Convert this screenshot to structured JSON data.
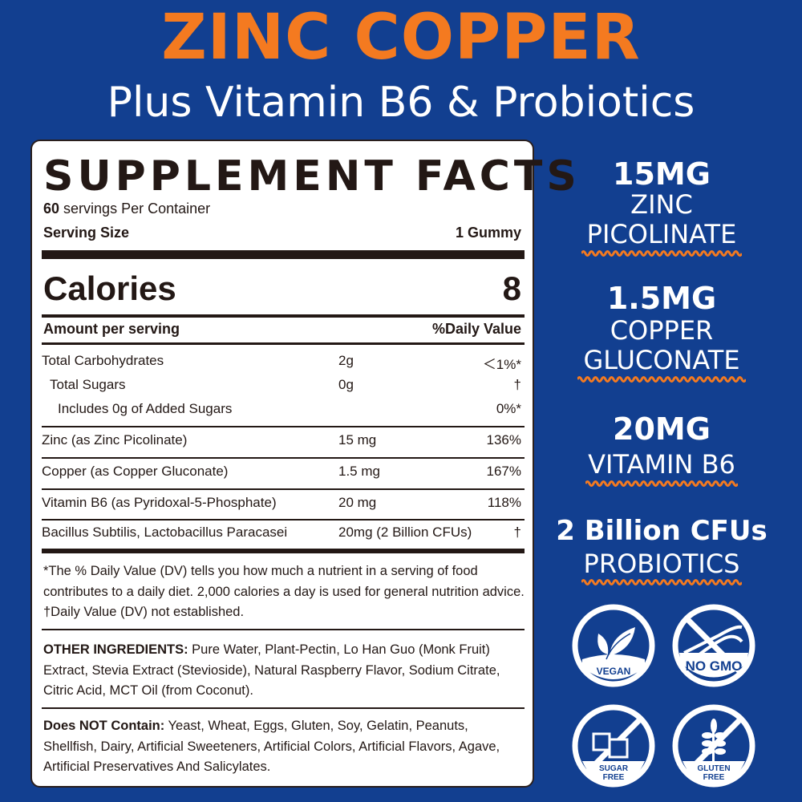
{
  "header": {
    "title": "ZINC COPPER",
    "subtitle": "Plus Vitamin B6 & Probiotics"
  },
  "facts": {
    "title": "SUPPLEMENT FACTS",
    "servings_count": "60",
    "servings_text": "servings Per Container",
    "serving_size_label": "Serving Size",
    "serving_size_value": "1 Gummy",
    "calories_label": "Calories",
    "calories_value": "8",
    "amount_label": "Amount per serving",
    "dv_label": "%Daily Value",
    "rows": [
      {
        "name": "Total Carbohydrates",
        "amount": "2g",
        "dv": "＜1%*"
      },
      {
        "name": "Total Sugars",
        "amount": "0g",
        "dv": "†"
      },
      {
        "name": "Includes 0g of Added Sugars",
        "amount": "",
        "dv": "0%*"
      },
      {
        "name": "Zinc (as Zinc Picolinate)",
        "amount": "15 mg",
        "dv": "136%"
      },
      {
        "name": "Copper (as Copper Gluconate)",
        "amount": "1.5 mg",
        "dv": "167%"
      },
      {
        "name": "Vitamin B6 (as Pyridoxal-5-Phosphate)",
        "amount": "20 mg",
        "dv": "118%"
      },
      {
        "name": "Bacillus Subtilis, Lactobacillus Paracasei",
        "amount": "20mg (2 Billion CFUs)",
        "dv": "†"
      }
    ],
    "footnote": "*The % Daily Value (DV) tells you how much a nutrient in a serving of food contributes to a daily diet. 2,000 calories a day is used for general nutrition advice. †Daily Value (DV) not established.",
    "other_label": "OTHER INGREDIENTS:",
    "other_text": " Pure Water, Plant-Pectin, Lo Han Guo (Monk Fruit) Extract, Stevia Extract (Stevioside), Natural Raspberry Flavor, Sodium Citrate, Citric Acid,  MCT Oil (from Coconut).",
    "not_label": "Does NOT Contain:",
    "not_text": " Yeast, Wheat, Eggs, Gluten, Soy, Gelatin, Peanuts, Shellfish, Dairy, Artificial Sweeteners, Artificial Colors, Artificial Flavors, Agave, Artificial Preservatives And Salicylates."
  },
  "highlights": [
    {
      "amount": "15MG",
      "line1": "ZINC",
      "line2": "PICOLINATE"
    },
    {
      "amount": "1.5MG",
      "line1": "COPPER",
      "line2": "GLUCONATE"
    },
    {
      "amount": "20MG",
      "line1": "VITAMIN B6"
    },
    {
      "amount": "2 Billion CFUs",
      "line1": "PROBIOTICS"
    }
  ],
  "badges": [
    {
      "icon": "leaf-icon",
      "label": "VEGAN"
    },
    {
      "icon": "dna-icon",
      "label": "NO GMO"
    },
    {
      "icon": "sugar-cubes-icon",
      "label1": "SUGAR",
      "label2": "FREE"
    },
    {
      "icon": "wheat-icon",
      "label1": "GLUTEN",
      "label2": "FREE"
    }
  ],
  "colors": {
    "background": "#123f90",
    "accent": "#f47a20",
    "text_dark": "#231815"
  }
}
